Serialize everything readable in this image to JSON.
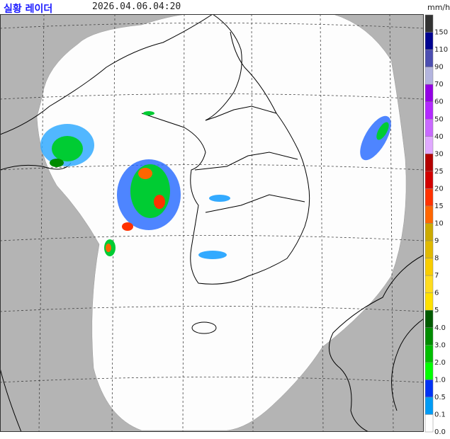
{
  "header": {
    "title": "실황 레이더",
    "time": "2026.04.06.04:20"
  },
  "legend_unit": "mm/h",
  "legend": [
    {
      "label": "150",
      "color": "#333333"
    },
    {
      "label": "110",
      "color": "#000390"
    },
    {
      "label": "90",
      "color": "#4c4eb1"
    },
    {
      "label": "70",
      "color": "#b3b4de"
    },
    {
      "label": "60",
      "color": "#9300e4"
    },
    {
      "label": "50",
      "color": "#b329ff"
    },
    {
      "label": "40",
      "color": "#c969ff"
    },
    {
      "label": "30",
      "color": "#e0a9ff"
    },
    {
      "label": "25",
      "color": "#b40000"
    },
    {
      "label": "20",
      "color": "#d20000"
    },
    {
      "label": "15",
      "color": "#ff3200"
    },
    {
      "label": "10",
      "color": "#ff6600"
    },
    {
      "label": "9",
      "color": "#ccaa00"
    },
    {
      "label": "8",
      "color": "#e0b900"
    },
    {
      "label": "7",
      "color": "#f9cd00"
    },
    {
      "label": "6",
      "color": "#ffdc1f"
    },
    {
      "label": "5",
      "color": "#ffe100"
    },
    {
      "label": "4.0",
      "color": "#005a00"
    },
    {
      "label": "3.0",
      "color": "#008c00"
    },
    {
      "label": "2.0",
      "color": "#00be00"
    },
    {
      "label": "1.0",
      "color": "#00ff00"
    },
    {
      "label": "0.5",
      "color": "#0033f5"
    },
    {
      "label": "0.1",
      "color": "#009bf5"
    },
    {
      "label": "0.0",
      "color": "#ffffff"
    }
  ]
}
